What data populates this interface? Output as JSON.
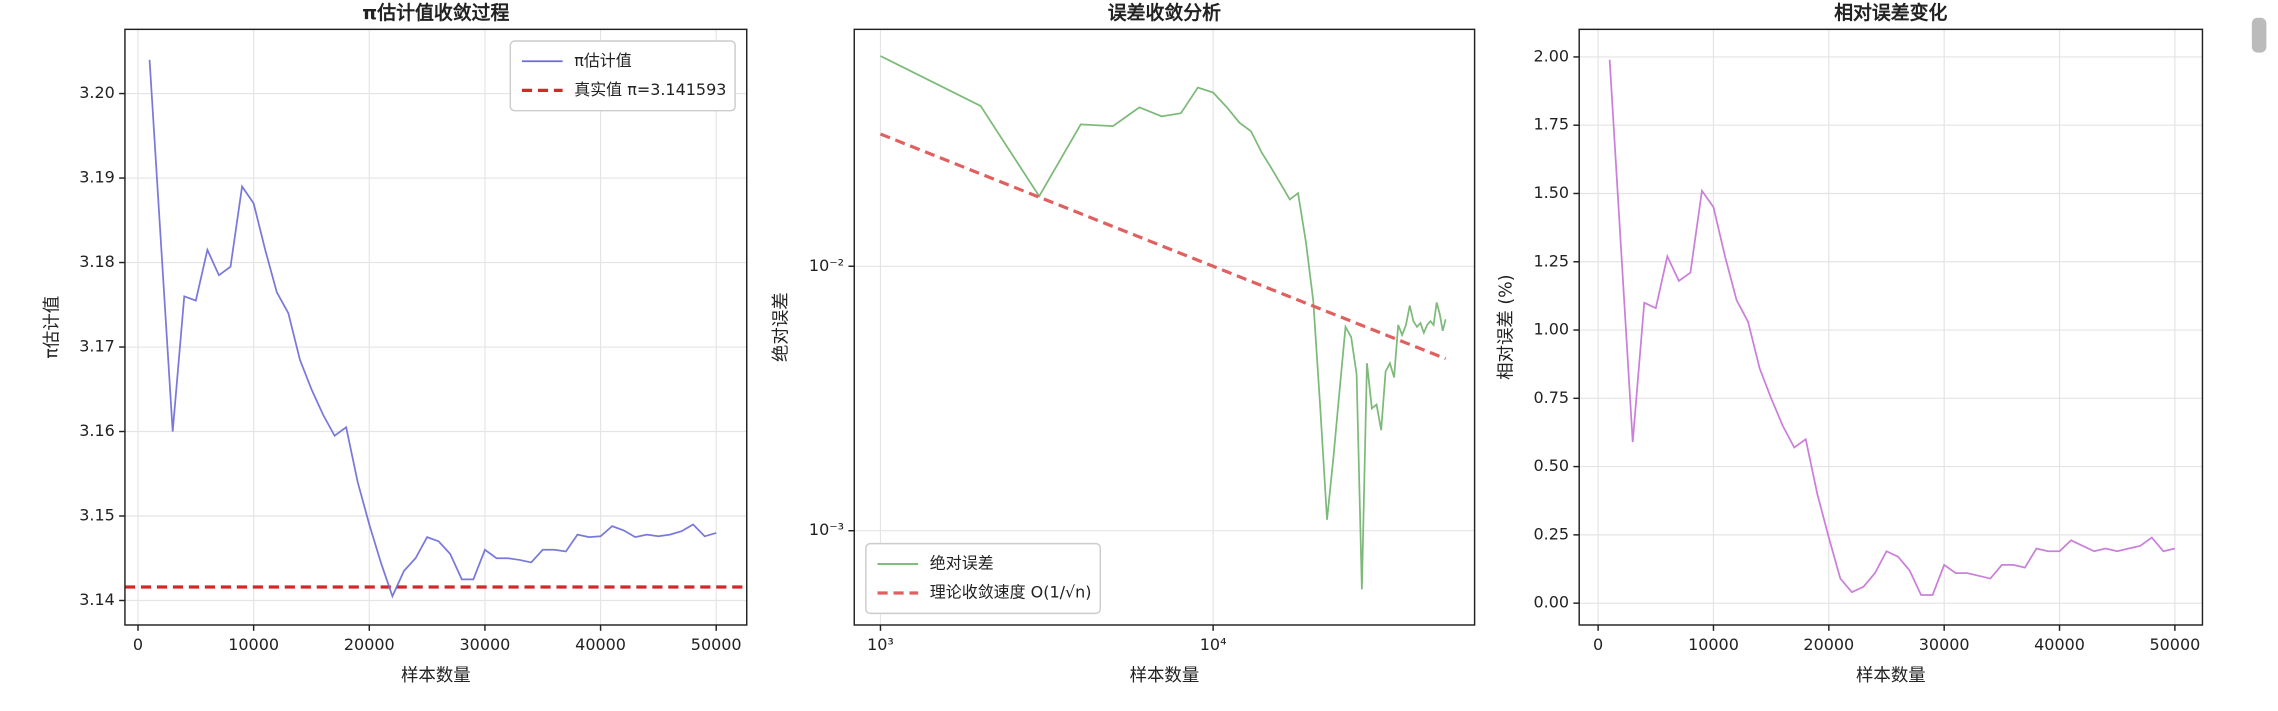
{
  "chart_data": [
    {
      "type": "line",
      "title": "π估计值收敛过程",
      "xlabel": "样本数量",
      "ylabel": "π估计值",
      "x": [
        1000,
        2000,
        3000,
        4000,
        5000,
        6000,
        7000,
        8000,
        9000,
        10000,
        11000,
        12000,
        13000,
        14000,
        15000,
        16000,
        17000,
        18000,
        19000,
        20000,
        21000,
        22000,
        23000,
        24000,
        25000,
        26000,
        27000,
        28000,
        29000,
        30000,
        31000,
        32000,
        33000,
        34000,
        35000,
        36000,
        37000,
        38000,
        39000,
        40000,
        41000,
        42000,
        43000,
        44000,
        45000,
        46000,
        47000,
        48000,
        49000,
        50000
      ],
      "series": [
        {
          "name": "π估计值",
          "color": "#6a6ad8",
          "style": "solid",
          "values": [
            3.204,
            3.182,
            3.16,
            3.176,
            3.1755,
            3.1815,
            3.1785,
            3.1795,
            3.189,
            3.187,
            3.1815,
            3.1765,
            3.174,
            3.1685,
            3.165,
            3.162,
            3.1595,
            3.1605,
            3.154,
            3.149,
            3.1445,
            3.1405,
            3.1435,
            3.145,
            3.1475,
            3.147,
            3.1455,
            3.1425,
            3.1425,
            3.146,
            3.145,
            3.145,
            3.1448,
            3.1445,
            3.146,
            3.146,
            3.1458,
            3.1478,
            3.1475,
            3.1476,
            3.1488,
            3.1483,
            3.1475,
            3.1478,
            3.1476,
            3.1478,
            3.1482,
            3.149,
            3.1476,
            3.148
          ]
        }
      ],
      "hlines": [
        {
          "name": "真实值 π=3.141593",
          "value": 3.141593,
          "color": "#d62728",
          "style": "dashed"
        }
      ],
      "xlim": [
        -1130,
        52640
      ],
      "ylim": [
        3.1371,
        3.2076
      ],
      "xticks": [
        0,
        10000,
        20000,
        30000,
        40000,
        50000
      ],
      "yticks": [
        3.14,
        3.15,
        3.16,
        3.17,
        3.18,
        3.19,
        {
          "value": 3.2,
          "label": "3.20"
        }
      ],
      "grid": true,
      "legend": "upper right"
    },
    {
      "type": "line",
      "title": "误差收敛分析",
      "xlabel": "样本数量",
      "ylabel": "绝对误差",
      "xscale": "log",
      "yscale": "log",
      "x": [
        1000,
        2000,
        3000,
        4000,
        5000,
        6000,
        7000,
        8000,
        9000,
        10000,
        11000,
        12000,
        13000,
        14000,
        15000,
        16000,
        17000,
        18000,
        19000,
        20000,
        21000,
        22000,
        23000,
        24000,
        25000,
        26000,
        27000,
        28000,
        29000,
        30000,
        31000,
        32000,
        33000,
        34000,
        35000,
        36000,
        37000,
        38000,
        39000,
        40000,
        41000,
        42000,
        43000,
        44000,
        45000,
        46000,
        47000,
        48000,
        49000,
        50000
      ],
      "series": [
        {
          "name": "绝对误差",
          "color": "#6fb36a",
          "style": "solid",
          "values": [
            0.0624,
            0.0404,
            0.0184,
            0.0344,
            0.0339,
            0.0399,
            0.0369,
            0.0379,
            0.0474,
            0.0454,
            0.0399,
            0.0349,
            0.0324,
            0.0269,
            0.0234,
            0.0204,
            0.0179,
            0.0189,
            0.0124,
            0.0074,
            0.0029,
            0.0011,
            0.0019,
            0.0034,
            0.0059,
            0.0054,
            0.0039,
            0.0006,
            0.0043,
            0.0029,
            0.003,
            0.0024,
            0.004,
            0.0043,
            0.0038,
            0.006,
            0.0055,
            0.006,
            0.0071,
            0.0062,
            0.0059,
            0.0061,
            0.0056,
            0.006,
            0.0062,
            0.006,
            0.0073,
            0.0066,
            0.0057,
            0.0063
          ]
        },
        {
          "name": "理论收敛速度 O(1/√n)",
          "color": "#e06060",
          "style": "dashed",
          "values": [
            0.031623,
            0.022361,
            0.018257,
            0.015811,
            0.014142,
            0.01291,
            0.011952,
            0.01118,
            0.010541,
            0.01,
            0.009535,
            0.009129,
            0.008771,
            0.008452,
            0.008165,
            0.007906,
            0.00767,
            0.007454,
            0.007255,
            0.007071,
            0.006901,
            0.006742,
            0.006594,
            0.006455,
            0.006325,
            0.006202,
            0.006086,
            0.005976,
            0.005872,
            0.005774,
            0.00568,
            0.00559,
            0.005505,
            0.005423,
            0.005345,
            0.00527,
            0.005199,
            0.00513,
            0.005064,
            0.005,
            0.004939,
            0.00488,
            0.004822,
            0.004767,
            0.004714,
            0.004663,
            0.004613,
            0.004564,
            0.004518,
            0.004472
          ]
        }
      ],
      "xlim": [
        834,
        61100
      ],
      "ylim": [
        0.00044,
        0.0787
      ],
      "xticks": [
        {
          "value": 1000,
          "label": "10³"
        },
        {
          "value": 10000,
          "label": "10⁴"
        }
      ],
      "yticks": [
        {
          "value": 0.001,
          "label": "10⁻³"
        },
        {
          "value": 0.01,
          "label": "10⁻²"
        }
      ],
      "grid": true,
      "legend": "lower left"
    },
    {
      "type": "line",
      "title": "相对误差变化",
      "xlabel": "样本数量",
      "ylabel": "相对误差 (%)",
      "x": [
        1000,
        2000,
        3000,
        4000,
        5000,
        6000,
        7000,
        8000,
        9000,
        10000,
        11000,
        12000,
        13000,
        14000,
        15000,
        16000,
        17000,
        18000,
        19000,
        20000,
        21000,
        22000,
        23000,
        24000,
        25000,
        26000,
        27000,
        28000,
        29000,
        30000,
        31000,
        32000,
        33000,
        34000,
        35000,
        36000,
        37000,
        38000,
        39000,
        40000,
        41000,
        42000,
        43000,
        44000,
        45000,
        46000,
        47000,
        48000,
        49000,
        50000
      ],
      "series": [
        {
          "color": "#c472d6",
          "style": "solid",
          "values": [
            1.99,
            1.29,
            0.59,
            1.1,
            1.08,
            1.27,
            1.18,
            1.21,
            1.51,
            1.45,
            1.27,
            1.11,
            1.03,
            0.86,
            0.75,
            0.65,
            0.57,
            0.6,
            0.4,
            0.24,
            0.09,
            0.04,
            0.06,
            0.11,
            0.19,
            0.17,
            0.12,
            0.03,
            0.03,
            0.14,
            0.11,
            0.11,
            0.1,
            0.09,
            0.14,
            0.14,
            0.13,
            0.2,
            0.19,
            0.19,
            0.23,
            0.21,
            0.19,
            0.2,
            0.19,
            0.2,
            0.21,
            0.24,
            0.19,
            0.2
          ]
        }
      ],
      "xlim": [
        -1640,
        52390
      ],
      "ylim": [
        -0.08,
        2.101
      ],
      "xticks": [
        0,
        10000,
        20000,
        30000,
        40000,
        50000
      ],
      "yticks": [
        {
          "value": 0,
          "label": "0.00"
        },
        0.25,
        {
          "value": 0.5,
          "label": "0.50"
        },
        0.75,
        {
          "value": 1,
          "label": "1.00"
        },
        1.25,
        {
          "value": 1.5,
          "label": "1.50"
        },
        1.75,
        {
          "value": 2,
          "label": "2.00"
        }
      ],
      "grid": true
    }
  ]
}
